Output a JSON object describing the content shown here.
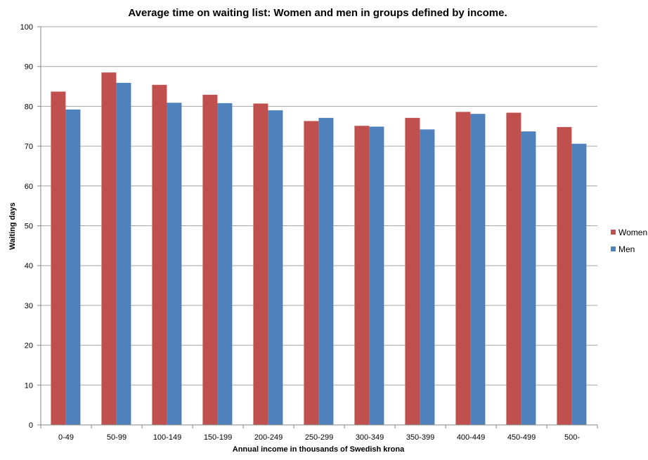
{
  "colors": {
    "women": "#c0504d",
    "men": "#4f81bd",
    "grid": "#a6a6a6"
  },
  "chart_data": {
    "type": "bar",
    "title": "Average time on waiting list: Women and men in groups defined by income.",
    "xlabel": "Annual income in thousands of Swedish krona",
    "ylabel": "Waiting days",
    "ylim": [
      0,
      100
    ],
    "yticks": [
      0,
      10,
      20,
      30,
      40,
      50,
      60,
      70,
      80,
      90,
      100
    ],
    "grid": true,
    "legend_position": "right",
    "categories": [
      "0-49",
      "50-99",
      "100-149",
      "150-199",
      "200-249",
      "250-299",
      "300-349",
      "350-399",
      "400-449",
      "450-499",
      "500-"
    ],
    "series": [
      {
        "name": "Women",
        "color": "#c0504d",
        "values": [
          83.7,
          88.5,
          85.4,
          82.9,
          80.7,
          76.3,
          75.1,
          77.1,
          78.6,
          78.4,
          74.8
        ]
      },
      {
        "name": "Men",
        "color": "#4f81bd",
        "values": [
          79.2,
          85.9,
          80.9,
          80.8,
          79.0,
          77.1,
          74.9,
          74.2,
          78.1,
          73.7,
          70.6
        ]
      }
    ]
  }
}
